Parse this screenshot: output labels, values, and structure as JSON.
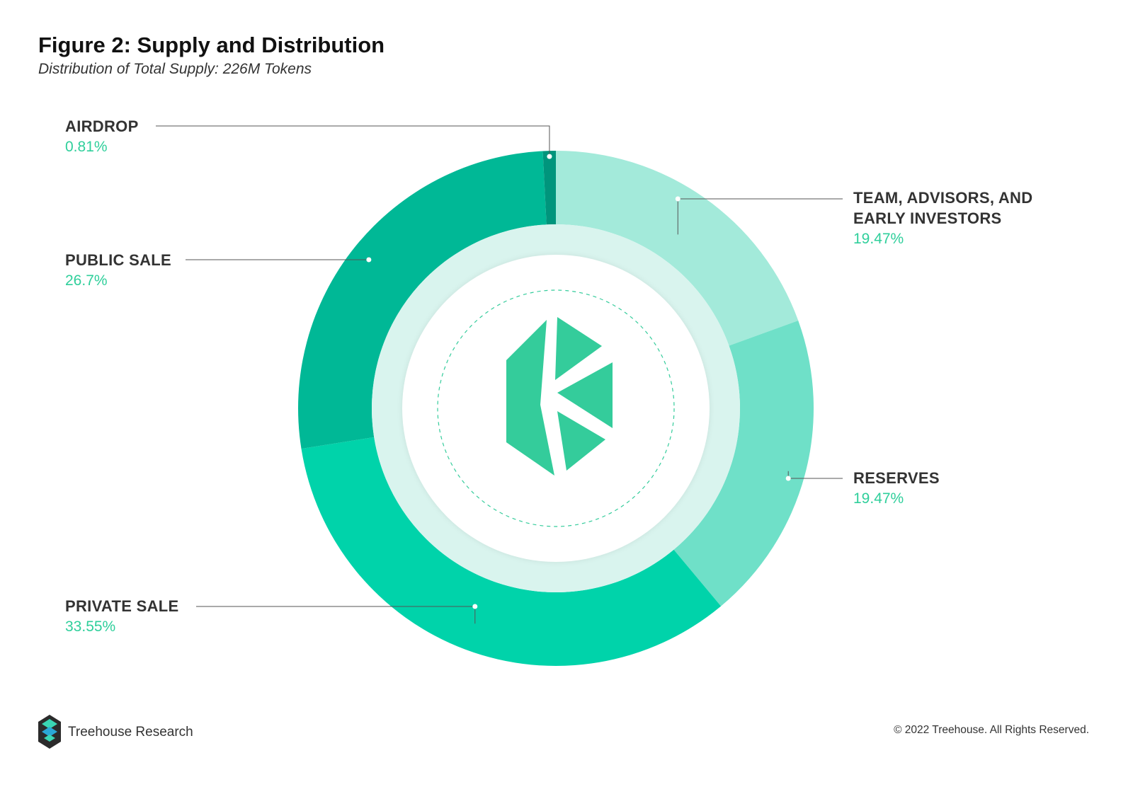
{
  "header": {
    "title": "Figure 2: Supply and Distribution",
    "subtitle": "Distribution of Total Supply: 226M Tokens"
  },
  "chart_data": {
    "type": "pie",
    "variant": "donut",
    "title": "Figure 2: Supply and Distribution",
    "subtitle": "Distribution of Total Supply: 226M Tokens",
    "slices": [
      {
        "label": "TEAM, ADVISORS, AND\nEARLY INVESTORS",
        "value": 19.47,
        "value_label": "19.47%",
        "color": "#a3eada"
      },
      {
        "label": "RESERVES",
        "value": 19.47,
        "value_label": "19.47%",
        "color": "#6fe0c8"
      },
      {
        "label": "PRIVATE SALE",
        "value": 33.55,
        "value_label": "33.55%",
        "color": "#00d3aa"
      },
      {
        "label": "PUBLIC SALE",
        "value": 26.7,
        "value_label": "26.7%",
        "color": "#00b896"
      },
      {
        "label": "AIRDROP",
        "value": 0.81,
        "value_label": "0.81%",
        "color": "#00957c"
      }
    ],
    "start_angle": "top, clockwise",
    "center_logo": "kyber-network-logo"
  },
  "footer": {
    "brand": "Treehouse Research",
    "copyright": "© 2022 Treehouse. All Rights Reserved."
  },
  "colors": {
    "accent": "#2fcf9b",
    "inner_ring": "#d9f4ee",
    "logo": "#34cc9b"
  }
}
